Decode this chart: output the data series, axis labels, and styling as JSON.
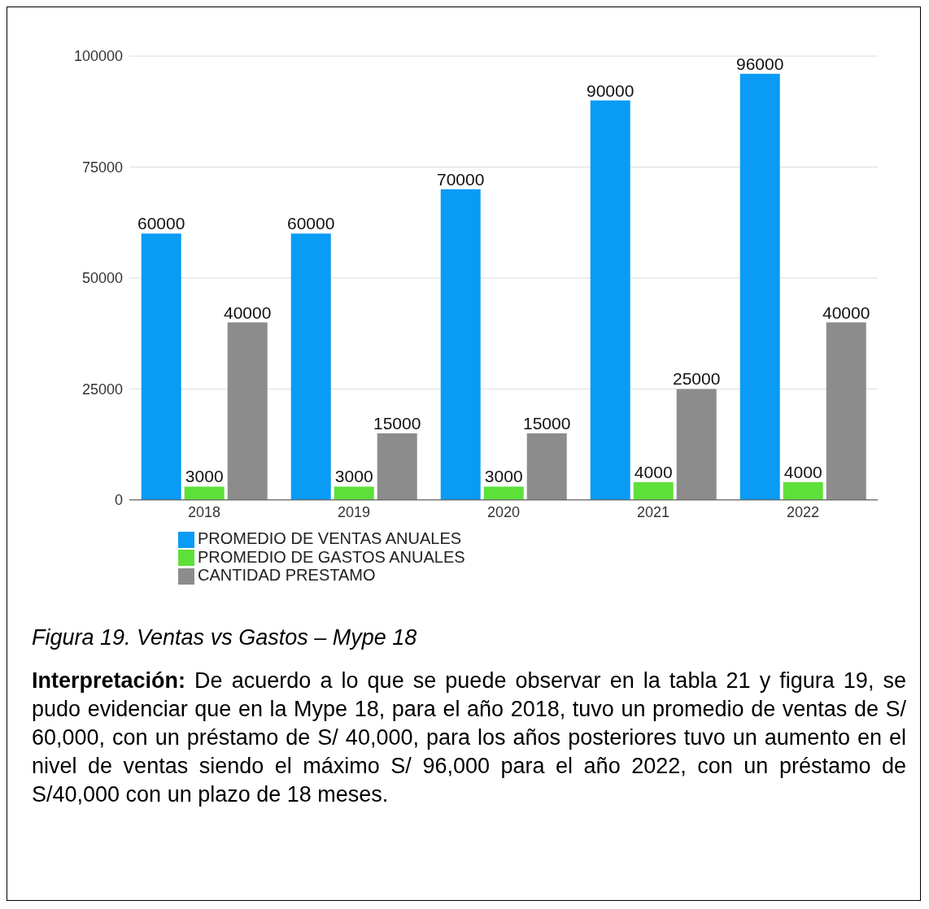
{
  "chart_data": {
    "type": "bar",
    "categories": [
      "2018",
      "2019",
      "2020",
      "2021",
      "2022"
    ],
    "series": [
      {
        "name": "PROMEDIO DE VENTAS ANUALES",
        "color": "#0a9bf5",
        "values": [
          60000,
          60000,
          70000,
          90000,
          96000
        ]
      },
      {
        "name": "PROMEDIO DE GASTOS ANUALES",
        "color": "#5ee03a",
        "values": [
          3000,
          3000,
          3000,
          4000,
          4000
        ]
      },
      {
        "name": "CANTIDAD PRESTAMO",
        "color": "#8c8c8c",
        "values": [
          40000,
          15000,
          15000,
          25000,
          40000
        ]
      }
    ],
    "ylim": [
      0,
      100000
    ],
    "yticks": [
      0,
      25000,
      50000,
      75000,
      100000
    ],
    "grid": "y",
    "legend": "bottom left",
    "data_labels": true,
    "annotations": [
      "Figura 19. Ventas vs Gastos – Mype 18",
      "Interpretación: De acuerdo a lo que se puede observar en la tabla 21 y figura 19, se pudo evidenciar que en la Mype 18, para el año 2018, tuvo un promedio de ventas de S/ 60,000, con un préstamo de S/ 40,000, para los años posteriores tuvo un aumento en el nivel de ventas siendo el máximo S/ 96,000 para el año 2022, con un préstamo de S/40,000 con un plazo de 18 meses."
    ]
  }
}
